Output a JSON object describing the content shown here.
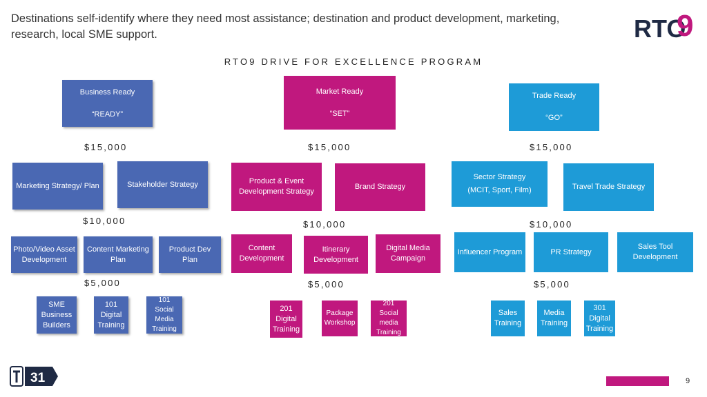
{
  "title": "Destinations self-identify where they need most assistance; destination and product development, marketing, research, local SME support.",
  "logo": {
    "text": "RTO",
    "digit": "9",
    "accent": "#c0187e",
    "color": "#1f2a44"
  },
  "program_title": "RTO9 DRIVE FOR EXCELLENCE PROGRAM",
  "colors": {
    "blue": "#4a68b3",
    "magenta": "#c0187e",
    "cyan": "#1e9bd7"
  },
  "stages": [
    {
      "label": "Business Ready",
      "tag": "“READY”",
      "amount": "$15,000"
    },
    {
      "label": "Market Ready",
      "tag": "“SET”",
      "amount": "$15,000"
    },
    {
      "label": "Trade Ready",
      "tag": "“GO”",
      "amount": "$15,000"
    }
  ],
  "strategies": {
    "blue": [
      "Marketing Strategy/ Plan",
      "Stakeholder Strategy"
    ],
    "magenta": [
      "Product & Event Development Strategy",
      "Brand Strategy"
    ],
    "cyan": [
      "Sector Strategy",
      "(MCIT, Sport, Film)",
      "Travel Trade Strategy"
    ]
  },
  "amounts_10k": [
    "$10,000",
    "$10,000",
    "$10,000"
  ],
  "development": {
    "blue": [
      "Photo/Video Asset Development",
      "Content Marketing Plan",
      "Product Dev Plan"
    ],
    "magenta": [
      "Content Development",
      "Itinerary Development",
      "Digital Media Campaign"
    ],
    "cyan": [
      "Influencer Program",
      "PR Strategy",
      "Sales Tool Development"
    ]
  },
  "amounts_5k": [
    "$5,000",
    "$5,000",
    "$5,000"
  ],
  "training": {
    "blue": [
      "SME Business Builders",
      "101 Digital Training",
      "101 Social Media Training"
    ],
    "magenta": [
      "201 Digital Training",
      "Package Workshop",
      "201 Social media Training"
    ],
    "cyan": [
      "Sales Training",
      "Media Training",
      "301 Digital Training"
    ]
  },
  "footer": {
    "t31": "31",
    "page": "9"
  }
}
